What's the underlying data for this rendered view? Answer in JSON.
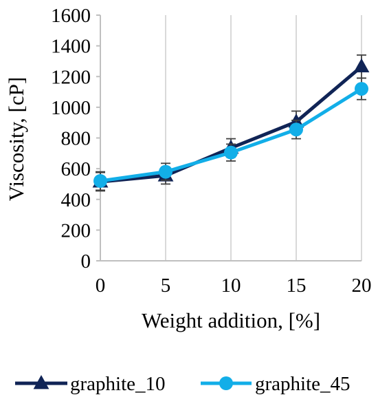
{
  "chart_data": {
    "type": "line",
    "title": "",
    "xlabel": "Weight addition, [%]",
    "ylabel": "Viscosity, [cP]",
    "x": [
      0,
      5,
      10,
      15,
      20
    ],
    "x_ticks": [
      "0",
      "5",
      "10",
      "15",
      "20"
    ],
    "y_ticks": [
      "0",
      "200",
      "400",
      "600",
      "800",
      "1000",
      "1200",
      "1400",
      "1600"
    ],
    "xlim": [
      0,
      20
    ],
    "ylim": [
      0,
      1600
    ],
    "grid": "vertical gridlines",
    "legend_position": "bottom",
    "series": [
      {
        "name": "graphite_10",
        "marker": "triangle",
        "color": "#102456",
        "values": [
          515,
          555,
          735,
          905,
          1265
        ],
        "error": [
          60,
          55,
          60,
          70,
          75
        ]
      },
      {
        "name": "graphite_45",
        "marker": "circle",
        "color": "#12AEE8",
        "values": [
          520,
          580,
          705,
          855,
          1120
        ],
        "error": [
          60,
          55,
          55,
          60,
          70
        ]
      }
    ]
  }
}
